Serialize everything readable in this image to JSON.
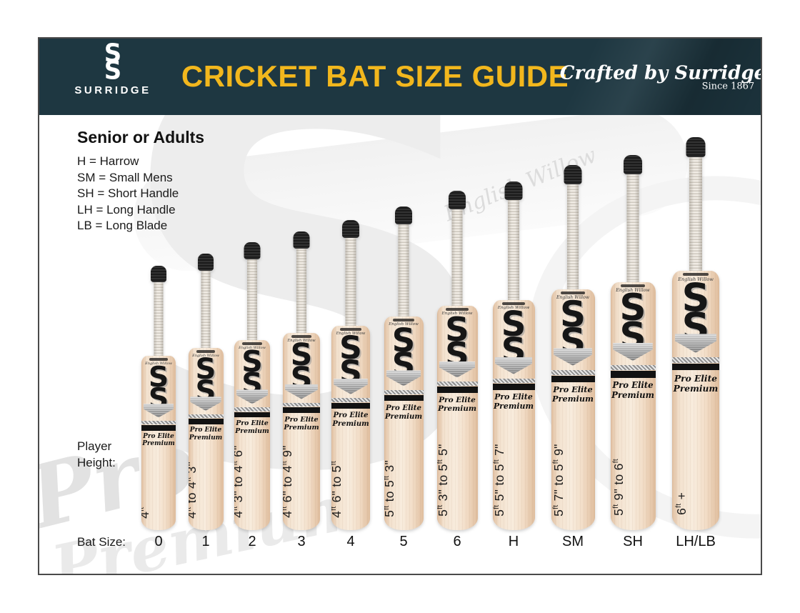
{
  "header": {
    "brand": "SURRIDGE",
    "title": "CRICKET BAT SIZE GUIDE",
    "tagline_script": "Crafted by Surridge",
    "tagline_since": "Since 1867"
  },
  "colors": {
    "header_band": "#1e3741",
    "title_yellow": "#f2b71d",
    "wood_light": "#f8ecdd",
    "wood_dark": "#dfbd9d",
    "decal_black": "#121212"
  },
  "section": {
    "heading": "Senior or Adults",
    "legend": [
      "H = Harrow",
      "SM = Small Mens",
      "SH = Short Handle",
      "LH = Long Handle",
      "LB = Long Blade"
    ]
  },
  "labels": {
    "player_height": "Player Height:",
    "bat_size": "Bat Size:"
  },
  "bat_decal": {
    "logo_letter": "S",
    "top_script": "English Willow",
    "model_line1": "Pro Elite",
    "model_line2": "Premium"
  },
  "watermark": {
    "letter": "S",
    "script1": "Pro",
    "script2": "Premium",
    "willow_script": "English Willow"
  },
  "bats": [
    {
      "size": "0",
      "player_height": "4ft"
    },
    {
      "size": "1",
      "player_height": "4ft to 4ft 3\""
    },
    {
      "size": "2",
      "player_height": "4ft 3\" to 4ft 6\""
    },
    {
      "size": "3",
      "player_height": "4ft 6\" to 4ft 9\""
    },
    {
      "size": "4",
      "player_height": "4ft 6\" to 5ft"
    },
    {
      "size": "5",
      "player_height": "5ft to 5ft 3\""
    },
    {
      "size": "6",
      "player_height": "5ft 3\" to 5ft 5\""
    },
    {
      "size": "H",
      "player_height": "5ft 5\" to 5ft 7\""
    },
    {
      "size": "SM",
      "player_height": "5ft 7\" to 5ft 9\""
    },
    {
      "size": "SH",
      "player_height": "5ft 9\" to 6ft"
    },
    {
      "size": "LH/LB",
      "player_height": "6ft +"
    }
  ]
}
